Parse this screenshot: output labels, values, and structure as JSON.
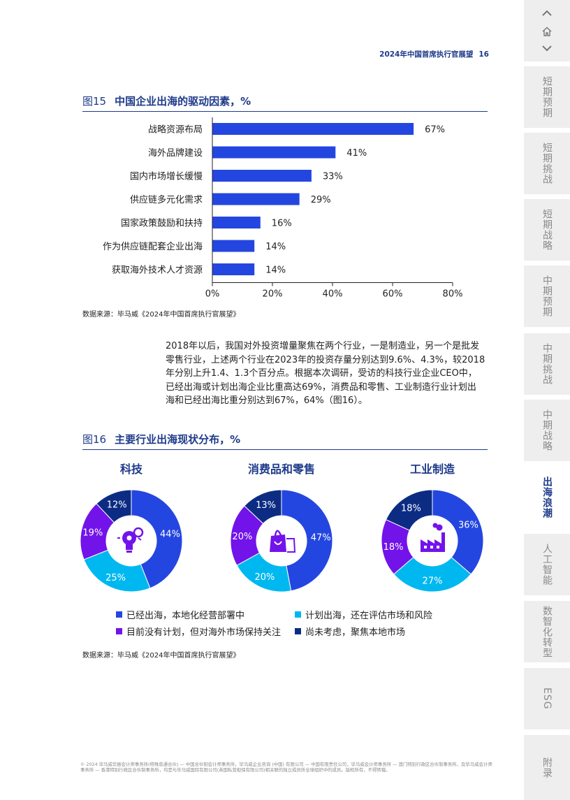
{
  "header": {
    "title": "2024年中国首席执行官展望",
    "page_number": "16"
  },
  "figure15": {
    "number": "图15",
    "title": "中国企业出海的驱动因素，%",
    "source": "数据来源：毕马威《2024年中国首席执行官展望》",
    "chart_data": {
      "type": "bar",
      "orientation": "horizontal",
      "categories": [
        "战略资源布局",
        "海外品牌建设",
        "国内市场增长缓慢",
        "供应链多元化需求",
        "国家政策鼓励和扶持",
        "作为供应链配套企业出海",
        "获取海外技术人才资源"
      ],
      "values": [
        67,
        41,
        33,
        29,
        16,
        14,
        14
      ],
      "value_labels": [
        "67%",
        "41%",
        "33%",
        "29%",
        "16%",
        "14%",
        "14%"
      ],
      "xlim": [
        0,
        80
      ],
      "xticks": [
        "0%",
        "20%",
        "40%",
        "60%",
        "80%"
      ],
      "bar_color": "#2446e0",
      "grid": false
    }
  },
  "body_text": [
    "2018年以后，我国对外投资增量聚焦在两个行业，一是制造业，另一个是批发",
    "零售行业，上述两个行业在2023年的投资存量分别达到9.6%、4.3%，较2018",
    "年分别上升1.4、1.3个百分点。根据本次调研，受访的科技行业企业CEO中，",
    "已经出海或计划出海企业比重高达69%，消费品和零售、工业制造行业计划出",
    "海和已经出海比重分别达到67%，64%（图16）。"
  ],
  "figure16": {
    "number": "图16",
    "title": "主要行业出海现状分布，%",
    "source": "数据来源：毕马威《2024年中国首席执行官展望》",
    "chart_data": [
      {
        "type": "pie",
        "title": "科技",
        "icon": "lightbulb-gear-icon",
        "values": [
          44,
          25,
          19,
          12
        ],
        "labels": [
          "44%",
          "25%",
          "19%",
          "12%"
        ]
      },
      {
        "type": "pie",
        "title": "消费品和零售",
        "icon": "shopping-bag-icon",
        "values": [
          47,
          20,
          20,
          13
        ],
        "labels": [
          "47%",
          "20%",
          "20%",
          "13%"
        ]
      },
      {
        "type": "pie",
        "title": "工业制造",
        "icon": "factory-icon",
        "values": [
          36,
          27,
          18,
          18
        ],
        "labels": [
          "36%",
          "27%",
          "18%",
          "18%"
        ]
      }
    ],
    "series": [
      {
        "name": "已经出海，本地化经营部署中",
        "color": "#2446e0"
      },
      {
        "name": "计划出海，还在评估市场和风险",
        "color": "#00b8f0"
      },
      {
        "name": "目前没有计划，但对海外市场保持关注",
        "color": "#7213ea"
      },
      {
        "name": "尚未考虑，聚焦本地市场",
        "color": "#0c2c84"
      }
    ],
    "legend_placement": "bottom"
  },
  "footer": {
    "text": "© 2024 毕马威华振会计师事务所(特殊普通合伙) — 中国合伙制会计师事务所，毕马威企业咨询 (中国) 有限公司 — 中国有限责任公司，毕马威会计师事务所 — 澳门特别行政区合伙制事务所，及毕马威会计师事务所 — 香港特别行政区合伙制事务所，均是与毕马威国际有限公司(英国私营担保有限公司)相关联的独立成员所全球组织中的成员。版权所有，不得转载。"
  },
  "sidenav": {
    "up_icon": "chevron-up-icon",
    "home_icon": "home-icon",
    "down_icon": "chevron-down-icon",
    "tabs": [
      {
        "label": "短期预期",
        "active": false
      },
      {
        "label": "短期挑战",
        "active": false
      },
      {
        "label": "短期战略",
        "active": false
      },
      {
        "label": "中期预期",
        "active": false
      },
      {
        "label": "中期挑战",
        "active": false
      },
      {
        "label": "中期战略",
        "active": false
      },
      {
        "label": "出海浪潮",
        "active": true
      },
      {
        "label": "人工智能",
        "active": false
      },
      {
        "label": "数智化转型",
        "active": false
      },
      {
        "label": "ESG",
        "active": false
      },
      {
        "label": "附录",
        "active": false
      }
    ]
  }
}
